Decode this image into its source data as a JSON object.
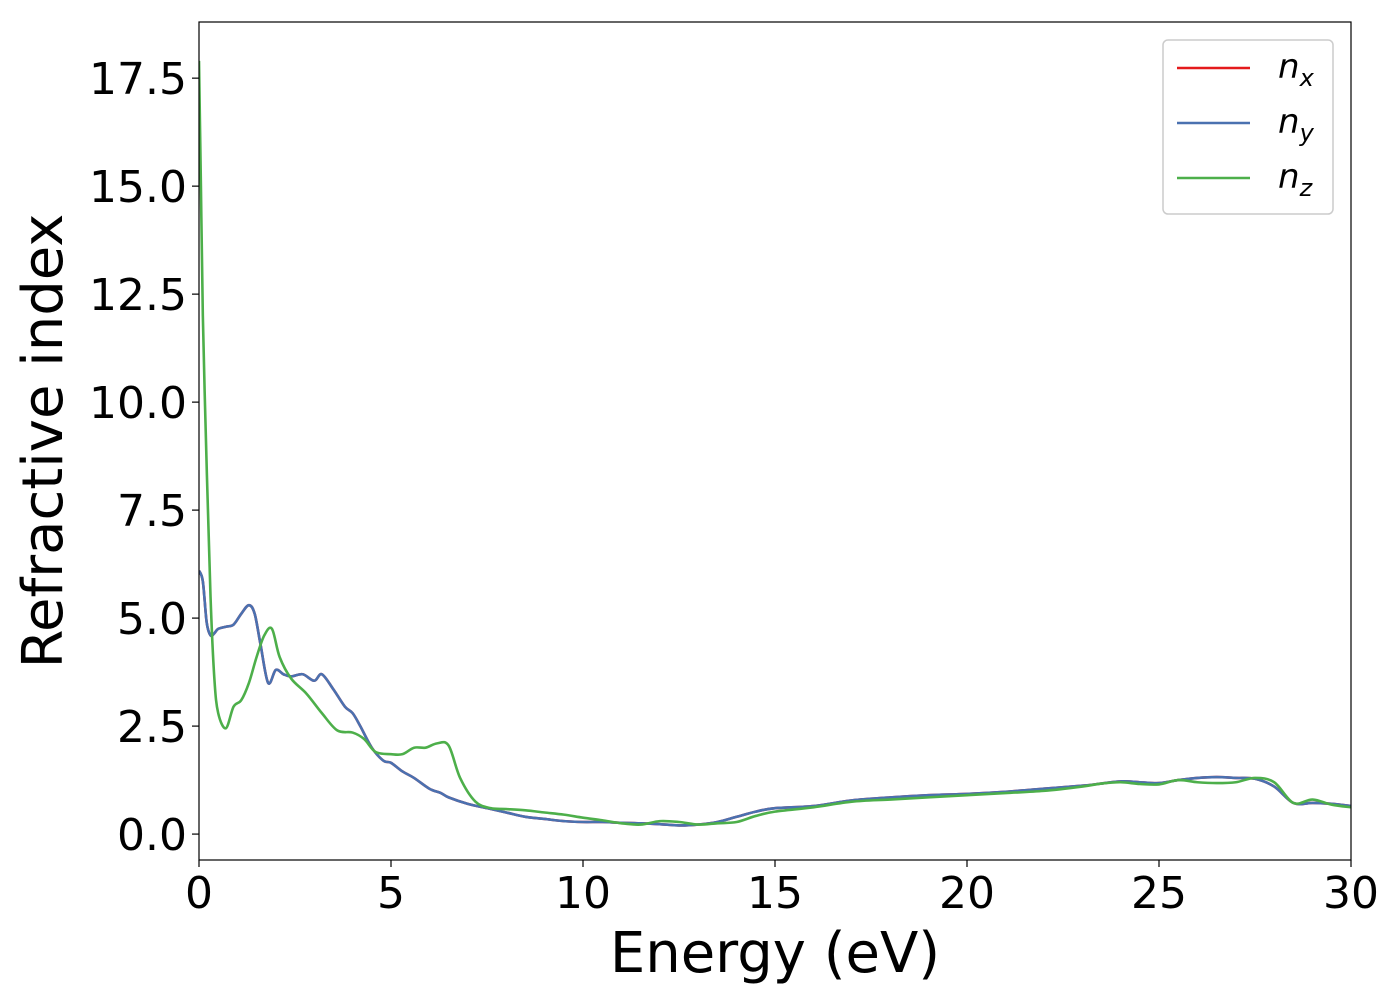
{
  "chart_data": {
    "type": "line",
    "xlabel": "Energy (eV)",
    "ylabel": "Refractive index",
    "xlim": [
      0,
      30
    ],
    "ylim": [
      -0.6,
      18.8
    ],
    "xticks": [
      0,
      5,
      10,
      15,
      20,
      25,
      30
    ],
    "xtick_labels": [
      "0",
      "5",
      "10",
      "15",
      "20",
      "25",
      "30"
    ],
    "yticks": [
      0,
      2.5,
      5,
      7.5,
      10,
      12.5,
      15,
      17.5
    ],
    "ytick_labels": [
      "0.0",
      "2.5",
      "5.0",
      "7.5",
      "10.0",
      "12.5",
      "15.0",
      "17.5"
    ],
    "grid": false,
    "legend_position": "top-right",
    "series": [
      {
        "name": "n",
        "subscript": "x",
        "color": "#e41a1c",
        "x": [
          0,
          0.1,
          0.2,
          0.3,
          0.4,
          0.5,
          0.7,
          0.9,
          1.1,
          1.3,
          1.45,
          1.6,
          1.8,
          2.0,
          2.2,
          2.4,
          2.7,
          3.0,
          3.2,
          3.5,
          3.8,
          4.0,
          4.2,
          4.5,
          4.8,
          5.0,
          5.3,
          5.6,
          6.0,
          6.3,
          6.5,
          7.0,
          7.5,
          8.0,
          8.5,
          9.0,
          9.5,
          10.0,
          10.5,
          11.0,
          11.5,
          12.0,
          12.5,
          13.0,
          13.5,
          14.0,
          14.5,
          15.0,
          16.0,
          17.0,
          18.0,
          19.0,
          20.0,
          21.0,
          22.0,
          23.0,
          23.5,
          24.0,
          24.5,
          25.0,
          25.5,
          26.0,
          26.5,
          27.0,
          27.5,
          28.0,
          28.5,
          29.0,
          29.5,
          30.0
        ],
        "y": [
          6.1,
          5.85,
          4.9,
          4.6,
          4.65,
          4.75,
          4.8,
          4.85,
          5.1,
          5.3,
          5.1,
          4.4,
          3.5,
          3.8,
          3.7,
          3.65,
          3.7,
          3.55,
          3.7,
          3.35,
          2.95,
          2.8,
          2.5,
          2.0,
          1.7,
          1.65,
          1.45,
          1.3,
          1.05,
          0.95,
          0.85,
          0.7,
          0.6,
          0.5,
          0.4,
          0.35,
          0.3,
          0.28,
          0.28,
          0.26,
          0.25,
          0.23,
          0.2,
          0.22,
          0.28,
          0.4,
          0.52,
          0.6,
          0.65,
          0.78,
          0.85,
          0.9,
          0.93,
          0.98,
          1.05,
          1.12,
          1.17,
          1.22,
          1.2,
          1.18,
          1.25,
          1.3,
          1.32,
          1.3,
          1.28,
          1.1,
          0.72,
          0.72,
          0.7,
          0.65
        ]
      },
      {
        "name": "n",
        "subscript": "y",
        "color": "#4a71b0",
        "x": [
          0,
          0.1,
          0.2,
          0.3,
          0.4,
          0.5,
          0.7,
          0.9,
          1.1,
          1.3,
          1.45,
          1.6,
          1.8,
          2.0,
          2.2,
          2.4,
          2.7,
          3.0,
          3.2,
          3.5,
          3.8,
          4.0,
          4.2,
          4.5,
          4.8,
          5.0,
          5.3,
          5.6,
          6.0,
          6.3,
          6.5,
          7.0,
          7.5,
          8.0,
          8.5,
          9.0,
          9.5,
          10.0,
          10.5,
          11.0,
          11.5,
          12.0,
          12.5,
          13.0,
          13.5,
          14.0,
          14.5,
          15.0,
          16.0,
          17.0,
          18.0,
          19.0,
          20.0,
          21.0,
          22.0,
          23.0,
          23.5,
          24.0,
          24.5,
          25.0,
          25.5,
          26.0,
          26.5,
          27.0,
          27.5,
          28.0,
          28.5,
          29.0,
          29.5,
          30.0
        ],
        "y": [
          6.1,
          5.85,
          4.9,
          4.6,
          4.65,
          4.75,
          4.8,
          4.85,
          5.1,
          5.3,
          5.1,
          4.4,
          3.5,
          3.8,
          3.7,
          3.65,
          3.7,
          3.55,
          3.7,
          3.35,
          2.95,
          2.8,
          2.5,
          2.0,
          1.7,
          1.65,
          1.45,
          1.3,
          1.05,
          0.95,
          0.85,
          0.7,
          0.6,
          0.5,
          0.4,
          0.35,
          0.3,
          0.28,
          0.28,
          0.26,
          0.25,
          0.23,
          0.2,
          0.22,
          0.28,
          0.4,
          0.52,
          0.6,
          0.65,
          0.78,
          0.85,
          0.9,
          0.93,
          0.98,
          1.05,
          1.12,
          1.17,
          1.22,
          1.2,
          1.18,
          1.25,
          1.3,
          1.32,
          1.3,
          1.28,
          1.1,
          0.72,
          0.72,
          0.7,
          0.65
        ]
      },
      {
        "name": "n",
        "subscript": "z",
        "color": "#4daf4a",
        "x": [
          0,
          0.05,
          0.1,
          0.2,
          0.3,
          0.4,
          0.5,
          0.7,
          0.9,
          1.1,
          1.3,
          1.5,
          1.7,
          1.9,
          2.1,
          2.4,
          2.8,
          3.2,
          3.6,
          4.0,
          4.3,
          4.6,
          5.0,
          5.3,
          5.6,
          5.9,
          6.2,
          6.5,
          6.8,
          7.2,
          7.6,
          8.0,
          8.5,
          9.0,
          9.5,
          10.0,
          10.5,
          11.0,
          11.5,
          12.0,
          12.5,
          13.0,
          13.5,
          14.0,
          14.5,
          15.0,
          16.0,
          17.0,
          18.0,
          19.0,
          20.0,
          21.0,
          22.0,
          23.0,
          23.5,
          24.0,
          24.5,
          25.0,
          25.5,
          26.0,
          26.5,
          27.0,
          27.5,
          28.0,
          28.5,
          29.0,
          29.5,
          30.0
        ],
        "y": [
          17.9,
          15.0,
          12.0,
          8.5,
          5.5,
          3.6,
          2.8,
          2.45,
          2.95,
          3.1,
          3.5,
          4.1,
          4.6,
          4.75,
          4.1,
          3.6,
          3.25,
          2.8,
          2.4,
          2.35,
          2.2,
          1.9,
          1.85,
          1.85,
          2.0,
          2.0,
          2.1,
          2.05,
          1.3,
          0.75,
          0.6,
          0.58,
          0.55,
          0.5,
          0.45,
          0.38,
          0.32,
          0.25,
          0.22,
          0.3,
          0.28,
          0.22,
          0.25,
          0.28,
          0.42,
          0.52,
          0.62,
          0.75,
          0.8,
          0.85,
          0.9,
          0.95,
          1.0,
          1.1,
          1.17,
          1.2,
          1.16,
          1.15,
          1.25,
          1.2,
          1.18,
          1.2,
          1.3,
          1.2,
          0.72,
          0.8,
          0.68,
          0.62
        ]
      }
    ]
  }
}
